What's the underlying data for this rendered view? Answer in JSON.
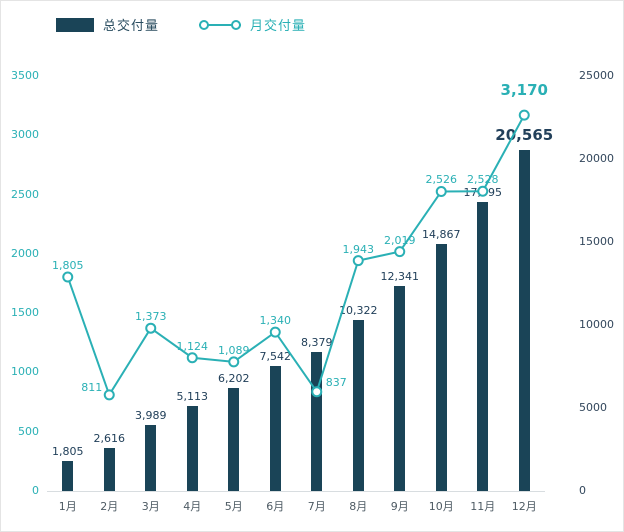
{
  "colors": {
    "bar": "#1a4457",
    "line": "#2ab0b5",
    "bar_label": "#22405a",
    "line_label": "#2ab0b5",
    "axis_left": "#2ab0b5",
    "axis_right": "#33475c",
    "axis_month": "#4d5a63",
    "legend_bar_text": "#2a4d60",
    "legend_line_text": "#2ab0b5"
  },
  "chart_data": {
    "type": "combo-bar-line",
    "title": "",
    "categories": [
      "1月",
      "2月",
      "3月",
      "4月",
      "5月",
      "6月",
      "7月",
      "8月",
      "9月",
      "10月",
      "11月",
      "12月"
    ],
    "series": [
      {
        "name": "总交付量",
        "type": "bar",
        "axis": "right",
        "values": [
          1805,
          2616,
          3989,
          5113,
          6202,
          7542,
          8379,
          10322,
          12341,
          14867,
          17395,
          20565
        ],
        "labels": [
          "1,805",
          "2,616",
          "3,989",
          "5,113",
          "6,202",
          "7,542",
          "8,379",
          "10,322",
          "12,341",
          "14,867",
          "17,395",
          "20,565"
        ]
      },
      {
        "name": "月交付量",
        "type": "line",
        "axis": "left",
        "values": [
          1805,
          811,
          1373,
          1124,
          1089,
          1340,
          837,
          1943,
          2019,
          2526,
          2528,
          3170
        ],
        "labels": [
          "1,805",
          "811",
          "1,373",
          "1,124",
          "1,089",
          "1,340",
          "837",
          "1,943",
          "2,019",
          "2,526",
          "2,528",
          "3,170"
        ]
      }
    ],
    "left_axis": {
      "range": [
        0,
        3500
      ],
      "ticks": [
        0,
        500,
        1000,
        1500,
        2000,
        2500,
        3000,
        3500
      ]
    },
    "right_axis": {
      "range": [
        0,
        25000
      ],
      "ticks": [
        0,
        5000,
        10000,
        15000,
        20000,
        25000
      ]
    },
    "legend_position": "top-left",
    "grid": false,
    "marker_style": "hollow-circle"
  }
}
